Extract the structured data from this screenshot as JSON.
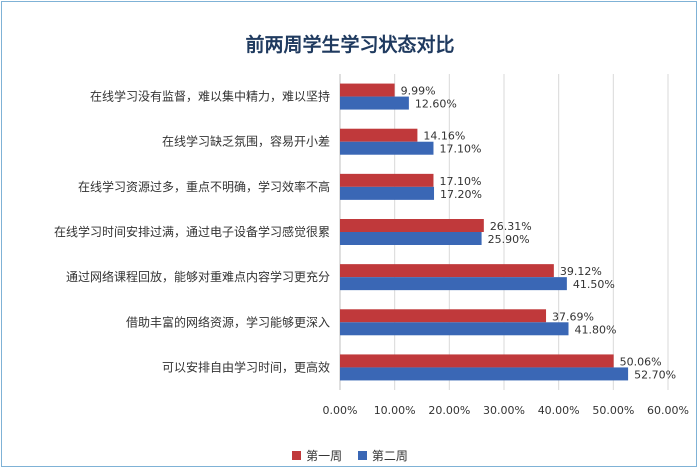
{
  "chart_data": {
    "type": "bar",
    "orientation": "horizontal",
    "title": "前两周学生学习状态对比",
    "categories": [
      "在线学习没有监督，难以集中精力，难以坚持",
      "在线学习缺乏氛围，容易开小差",
      "在线学习资源过多，重点不明确，学习效率不高",
      "在线学习时间安排过满，通过电子设备学习感觉很累",
      "通过网络课程回放，能够对重难点内容学习更充分",
      "借助丰富的网络资源，学习能够更深入",
      "可以安排自由学习时间，更高效"
    ],
    "series": [
      {
        "name": "第一周",
        "color": "#c0393b",
        "values": [
          9.99,
          14.16,
          17.1,
          26.31,
          39.12,
          37.69,
          50.06
        ],
        "labels": [
          "9.99%",
          "14.16%",
          "17.10%",
          "26.31%",
          "39.12%",
          "37.69%",
          "50.06%"
        ]
      },
      {
        "name": "第二周",
        "color": "#3a67b5",
        "values": [
          12.6,
          17.1,
          17.2,
          25.9,
          41.5,
          41.8,
          52.7
        ],
        "labels": [
          "12.60%",
          "17.10%",
          "17.20%",
          "25.90%",
          "41.50%",
          "41.80%",
          "52.70%"
        ]
      }
    ],
    "xlim": [
      0,
      60
    ],
    "xticks": [
      "0.00%",
      "10.00%",
      "20.00%",
      "30.00%",
      "40.00%",
      "50.00%",
      "60.00%"
    ],
    "grid": true,
    "legend_position": "bottom"
  }
}
